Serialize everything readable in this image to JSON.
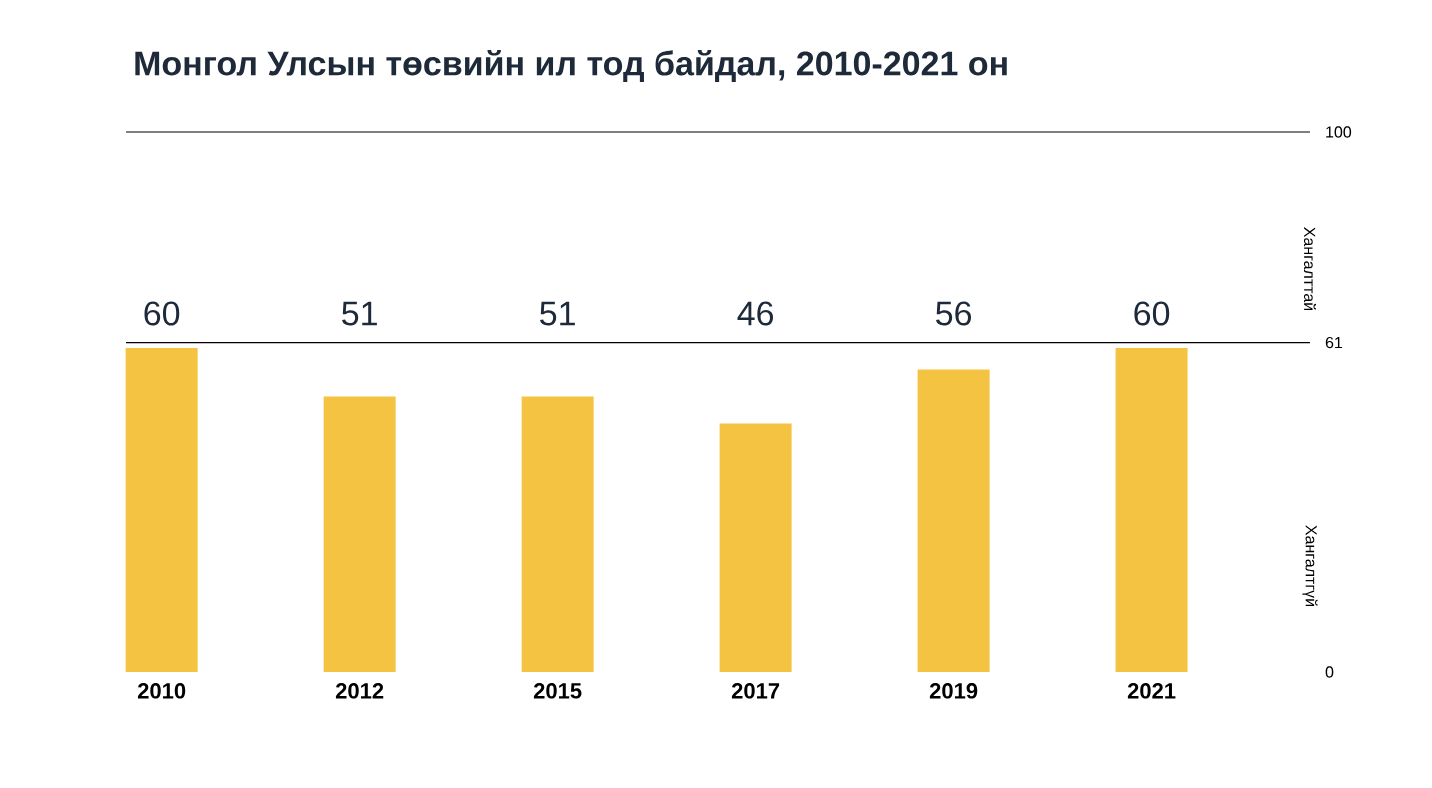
{
  "chart_data": {
    "type": "bar",
    "title": "Монгол Улсын төсвийн ил тод байдал, 2010-2021 он",
    "categories": [
      "2010",
      "2012",
      "2015",
      "2017",
      "2019",
      "2021"
    ],
    "values": [
      60,
      51,
      51,
      46,
      56,
      60
    ],
    "color": "#f5c342",
    "data_labels": true,
    "ylim": [
      0,
      100
    ],
    "yticks": [
      0,
      61,
      100
    ],
    "grid": false,
    "ref_lines": [
      {
        "axis": "y",
        "value": 61,
        "color": "#000000"
      }
    ],
    "annotations": [
      "Хангалттай",
      "Хангалтгүй"
    ]
  }
}
